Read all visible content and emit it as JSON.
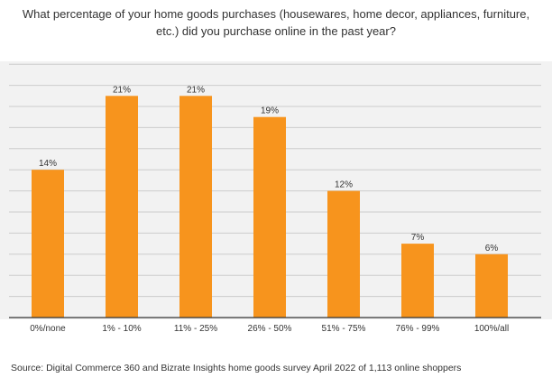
{
  "title_lines": [
    "What percentage of your home goods purchases (housewares, home decor, appliances, furniture,",
    "etc.) did you purchase online in the past year?"
  ],
  "source": "Source:  Digital Commerce 360 and Bizrate Insights home goods survey April 2022 of 1,113 online shoppers",
  "colors": {
    "bar": "#f7941d",
    "grid": "#cccccc",
    "axis": "#333333",
    "background": "#f2f2f2"
  },
  "chart_data": {
    "type": "bar",
    "title": "What percentage of your home goods purchases (housewares, home decor, appliances, furniture, etc.) did you purchase online in the past year?",
    "xlabel": "",
    "ylabel": "",
    "categories": [
      "0%/none",
      "1% - 10%",
      "11% - 25%",
      "26% - 50%",
      "51% - 75%",
      "76% - 99%",
      "100%/all"
    ],
    "values": [
      14,
      21,
      21,
      19,
      12,
      7,
      6
    ],
    "data_labels": [
      "14%",
      "21%",
      "21%",
      "19%",
      "12%",
      "7%",
      "6%"
    ],
    "ylim": [
      0,
      24
    ],
    "grid": true,
    "legend": "none"
  }
}
